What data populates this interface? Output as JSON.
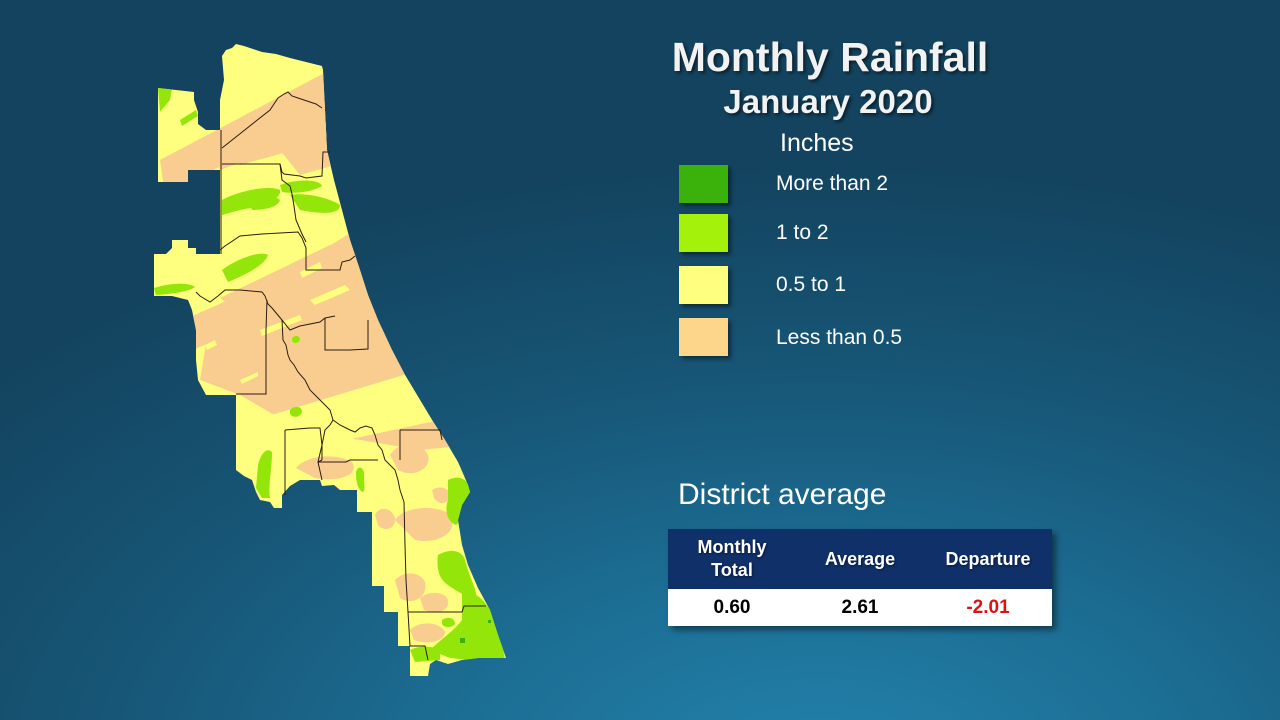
{
  "title": "Monthly Rainfall",
  "subtitle": "January 2020",
  "legend": {
    "units": "Inches",
    "items": [
      {
        "label": "More than 2",
        "color": "#3bb20c"
      },
      {
        "label": "1 to 2",
        "color": "#a4f20c"
      },
      {
        "label": "0.5 to 1",
        "color": "#ffff7f"
      },
      {
        "label": "Less than 0.5",
        "color": "#fdd68c"
      }
    ]
  },
  "map": {
    "region": "District rainfall map by county",
    "colors": {
      "gt2": "#3bb20c",
      "1to2": "#94e60a",
      "half_to_1": "#ffff7f",
      "lt_half": "#f9cc90",
      "county_line": "#2a1d10"
    }
  },
  "district_average": {
    "heading": "District average",
    "columns": [
      "Monthly Total",
      "Average",
      "Departure"
    ],
    "column_lines": [
      [
        "Monthly",
        "Total"
      ],
      [
        "Average"
      ],
      [
        "Departure"
      ]
    ],
    "values": [
      "0.60",
      "2.61",
      "-2.01"
    ],
    "departure_color": "#e01010"
  }
}
